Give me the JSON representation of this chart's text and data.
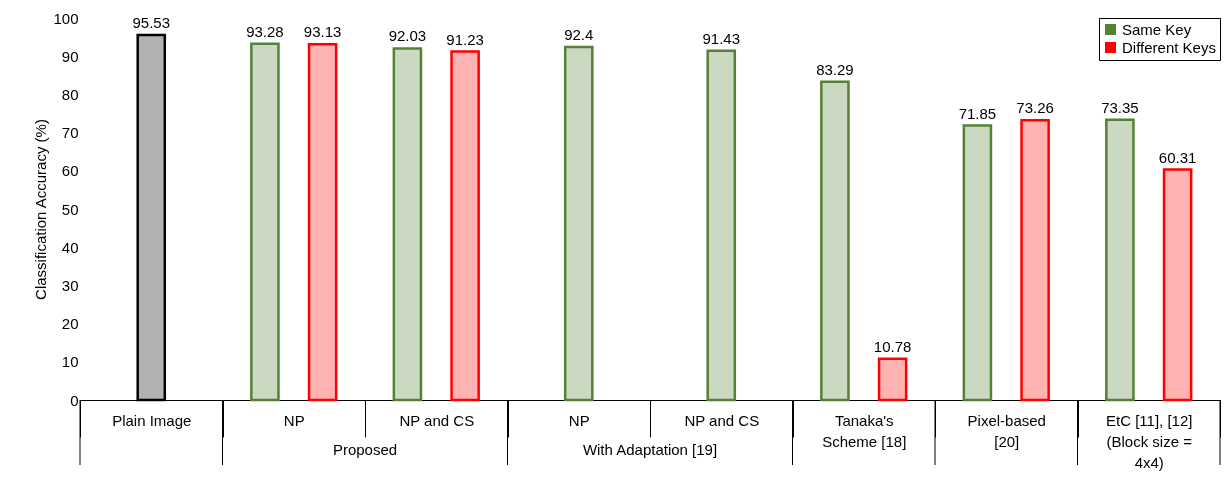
{
  "chart_data": {
    "type": "bar",
    "ylabel": "Classification Accuracy (%)",
    "categories": [
      "Plain Image",
      "NP",
      "NP and CS",
      "NP",
      "NP and CS",
      "Tanaka's Scheme [18]",
      "Pixel-based [20]",
      "EtC [11], [12] (Block size = 4x4)"
    ],
    "series": [
      {
        "color": "#000000",
        "values": [
          95.53,
          null,
          null,
          null,
          null,
          null,
          null,
          null
        ]
      },
      {
        "name": "Same Key",
        "color": "#548235",
        "values": [
          null,
          93.28,
          92.03,
          92.4,
          91.43,
          83.29,
          71.85,
          73.35
        ]
      },
      {
        "name": "Different Keys",
        "color": "#ff0000",
        "values": [
          null,
          93.13,
          91.23,
          null,
          null,
          10.78,
          73.26,
          60.31
        ]
      }
    ],
    "ylim": [
      0,
      100
    ],
    "yticks": [
      0,
      10,
      20,
      30,
      40,
      50,
      60,
      70,
      80,
      90,
      100
    ],
    "data_labels": true,
    "legend": "top right",
    "annotations": [
      "Proposed",
      "With Adaptation [19]"
    ]
  }
}
